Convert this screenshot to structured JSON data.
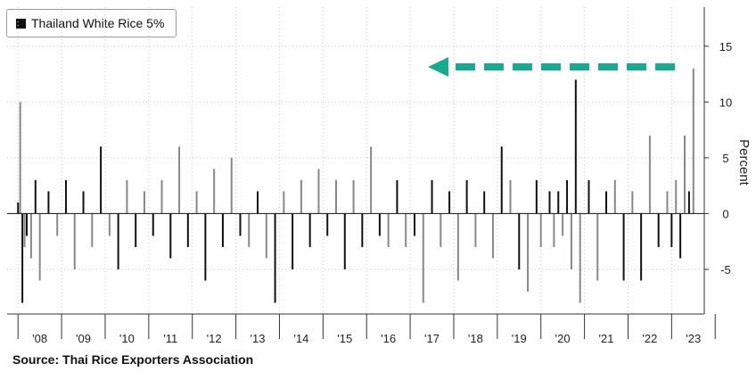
{
  "legend": {
    "label": "Thailand White Rice 5%",
    "swatch_color": "#111111"
  },
  "source": "Source: Thai Rice Exporters Association",
  "arrow_color": "#1aaa92",
  "chart_data": {
    "type": "bar",
    "ylabel": "Percent",
    "ylim": [
      -9,
      18.5
    ],
    "y_ticks": [
      "15",
      "10",
      "5",
      "0",
      "-5"
    ],
    "x_tick_labels": [
      "'08",
      "'09",
      "'10",
      "'11",
      "'12",
      "'13",
      "'14",
      "'15",
      "'16",
      "'17",
      "'18",
      "'19",
      "'20",
      "'21",
      "'22",
      "'23"
    ],
    "grid": "dotted",
    "legend_position": "top-left",
    "bar_colors": [
      "#111111",
      "#888888"
    ],
    "x": [
      2008.0,
      2008.05,
      2008.1,
      2008.15,
      2008.2,
      2008.3,
      2008.4,
      2008.5,
      2008.7,
      2008.9,
      2009.1,
      2009.3,
      2009.5,
      2009.7,
      2009.9,
      2010.1,
      2010.3,
      2010.5,
      2010.7,
      2010.9,
      2011.1,
      2011.3,
      2011.5,
      2011.7,
      2011.9,
      2012.1,
      2012.3,
      2012.5,
      2012.7,
      2012.9,
      2013.1,
      2013.3,
      2013.5,
      2013.7,
      2013.9,
      2014.1,
      2014.3,
      2014.5,
      2014.7,
      2014.9,
      2015.1,
      2015.3,
      2015.5,
      2015.7,
      2015.9,
      2016.1,
      2016.3,
      2016.5,
      2016.7,
      2016.9,
      2017.1,
      2017.3,
      2017.5,
      2017.7,
      2017.9,
      2018.1,
      2018.3,
      2018.5,
      2018.7,
      2018.9,
      2019.1,
      2019.3,
      2019.5,
      2019.7,
      2019.9,
      2020.0,
      2020.2,
      2020.3,
      2020.4,
      2020.5,
      2020.6,
      2020.7,
      2020.8,
      2020.9,
      2021.1,
      2021.3,
      2021.5,
      2021.7,
      2021.9,
      2022.1,
      2022.3,
      2022.5,
      2022.7,
      2022.9,
      2023.0,
      2023.1,
      2023.2,
      2023.3,
      2023.4,
      2023.5
    ],
    "values": [
      1,
      10,
      -8,
      -3,
      -2,
      -4,
      3,
      -6,
      2,
      -2,
      3,
      -5,
      2,
      -3,
      6,
      -2,
      -5,
      3,
      -3,
      2,
      -2,
      3,
      -4,
      6,
      -3,
      2,
      -6,
      4,
      -3,
      5,
      -2,
      -3,
      2,
      -4,
      -8,
      2,
      -5,
      3,
      -3,
      4,
      -2,
      3,
      -5,
      3,
      -3,
      6,
      -2,
      -3,
      3,
      -3,
      -2,
      -8,
      3,
      -3,
      2,
      -6,
      3,
      -3,
      2,
      -4,
      6,
      3,
      -5,
      -7,
      3,
      -3,
      2,
      -3,
      2,
      -2,
      3,
      -5,
      12,
      -8,
      3,
      -6,
      2,
      3,
      -6,
      2,
      -6,
      7,
      -3,
      2,
      -3,
      3,
      -4,
      7,
      2,
      13
    ]
  }
}
